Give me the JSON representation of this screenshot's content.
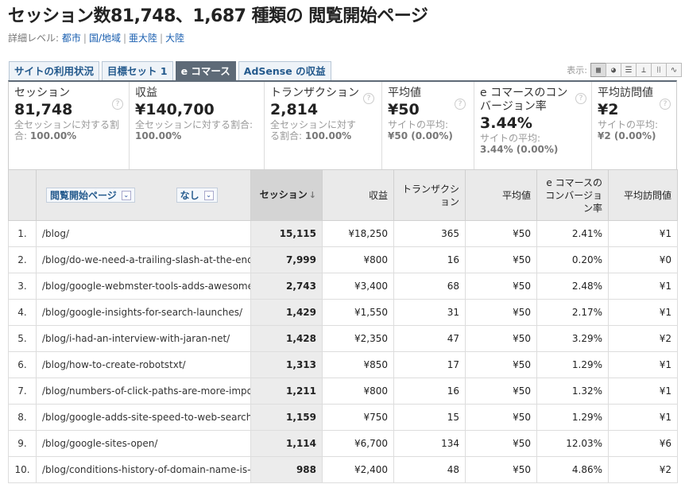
{
  "header": {
    "title": "セッション数81,748、1,687 種類の 閲覧開始ページ",
    "detail_label": "詳細レベル:",
    "detail_links": [
      "都市",
      "国/地域",
      "亜大陸",
      "大陸"
    ]
  },
  "tabs": [
    "サイトの利用状況",
    "目標セット 1",
    "e コマース",
    "AdSense の収益"
  ],
  "active_tab_index": 2,
  "display": {
    "label": "表示:",
    "views": [
      "table-view-icon",
      "pie-view-icon",
      "performance-view-icon",
      "comparison-view-icon",
      "pivot-view-icon",
      "sparkline-view-icon"
    ],
    "active_view_index": 0
  },
  "metrics": [
    {
      "label": "セッション",
      "value": "81,748",
      "sub": "全セッションに対する割合:",
      "sub_value": "100.00%"
    },
    {
      "label": "収益",
      "value": "¥140,700",
      "sub": "全セッションに対する割合:",
      "sub_value": "100.00%"
    },
    {
      "label": "トランザクション",
      "value": "2,814",
      "sub": "全セッションに対する割合:",
      "sub_value": "100.00%"
    },
    {
      "label": "平均値",
      "value": "¥50",
      "sub": "サイトの平均:",
      "sub_value": "¥50 (0.00%)"
    },
    {
      "label": "e コマースのコンバージョン率",
      "value": "3.44%",
      "sub": "サイトの平均:",
      "sub_value": "3.44% (0.00%)"
    },
    {
      "label": "平均訪問値",
      "value": "¥2",
      "sub": "サイトの平均:",
      "sub_value": "¥2 (0.00%)"
    }
  ],
  "table": {
    "dimension_label": "閲覧開始ページ",
    "secondary_label": "なし",
    "columns": [
      "セッション",
      "収益",
      "トランザクション",
      "平均値",
      "e コマースのコンバージョン率",
      "平均訪問値"
    ],
    "sort_arrow": "↓",
    "rows": [
      {
        "num": "1.",
        "page": "/blog/",
        "sessions": "15,115",
        "revenue": "¥18,250",
        "transactions": "365",
        "avg": "¥50",
        "conv": "2.41%",
        "per_visit": "¥1"
      },
      {
        "num": "2.",
        "page": "/blog/do-we-need-a-trailing-slash-at-the-end-",
        "sessions": "7,999",
        "revenue": "¥800",
        "transactions": "16",
        "avg": "¥50",
        "conv": "0.20%",
        "per_visit": "¥0"
      },
      {
        "num": "3.",
        "page": "/blog/google-webmster-tools-adds-awesome",
        "sessions": "2,743",
        "revenue": "¥3,400",
        "transactions": "68",
        "avg": "¥50",
        "conv": "2.48%",
        "per_visit": "¥1"
      },
      {
        "num": "4.",
        "page": "/blog/google-insights-for-search-launches/",
        "sessions": "1,429",
        "revenue": "¥1,550",
        "transactions": "31",
        "avg": "¥50",
        "conv": "2.17%",
        "per_visit": "¥1"
      },
      {
        "num": "5.",
        "page": "/blog/i-had-an-interview-with-jaran-net/",
        "sessions": "1,428",
        "revenue": "¥2,350",
        "transactions": "47",
        "avg": "¥50",
        "conv": "3.29%",
        "per_visit": "¥2"
      },
      {
        "num": "6.",
        "page": "/blog/how-to-create-robotstxt/",
        "sessions": "1,313",
        "revenue": "¥850",
        "transactions": "17",
        "avg": "¥50",
        "conv": "1.29%",
        "per_visit": "¥1"
      },
      {
        "num": "7.",
        "page": "/blog/numbers-of-click-paths-are-more-impor",
        "sessions": "1,211",
        "revenue": "¥800",
        "transactions": "16",
        "avg": "¥50",
        "conv": "1.32%",
        "per_visit": "¥1"
      },
      {
        "num": "8.",
        "page": "/blog/google-adds-site-speed-to-web-search-",
        "sessions": "1,159",
        "revenue": "¥750",
        "transactions": "15",
        "avg": "¥50",
        "conv": "1.29%",
        "per_visit": "¥1"
      },
      {
        "num": "9.",
        "page": "/blog/google-sites-open/",
        "sessions": "1,114",
        "revenue": "¥6,700",
        "transactions": "134",
        "avg": "¥50",
        "conv": "12.03%",
        "per_visit": "¥6"
      },
      {
        "num": "10.",
        "page": "/blog/conditions-history-of-domain-name-is-r",
        "sessions": "988",
        "revenue": "¥2,400",
        "transactions": "48",
        "avg": "¥50",
        "conv": "4.86%",
        "per_visit": "¥2"
      }
    ]
  }
}
